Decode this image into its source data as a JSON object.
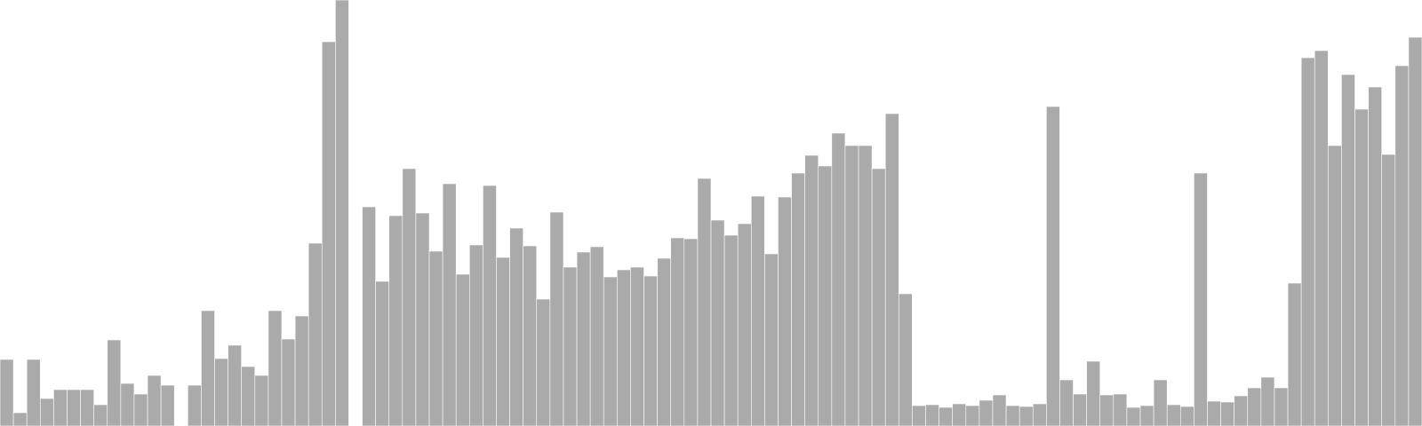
{
  "chart_data": {
    "type": "bar",
    "title": "",
    "xlabel": "",
    "ylabel": "",
    "ylim": [
      0,
      480
    ],
    "grid": false,
    "legend": "none",
    "bar_color": "#aaaaaa",
    "series": [
      {
        "values": [
          75,
          15,
          75,
          31,
          41,
          41,
          41,
          24,
          97,
          48,
          36,
          57,
          46,
          0,
          46,
          130,
          76,
          91,
          67,
          57,
          130,
          98,
          124,
          206,
          433,
          480,
          0,
          247,
          163,
          237,
          290,
          240,
          197,
          273,
          171,
          204,
          271,
          190,
          223,
          203,
          143,
          241,
          179,
          196,
          202,
          168,
          176,
          179,
          169,
          189,
          212,
          211,
          279,
          232,
          215,
          228,
          259,
          194,
          258,
          285,
          305,
          293,
          330,
          316,
          316,
          290,
          352,
          149,
          23,
          24,
          21,
          25,
          23,
          29,
          35,
          23,
          22,
          25,
          360,
          52,
          36,
          73,
          35,
          36,
          21,
          23,
          52,
          24,
          22,
          285,
          28,
          27,
          34,
          43,
          55,
          43,
          161,
          415,
          423,
          316,
          396,
          357,
          382,
          306,
          406,
          438
        ]
      }
    ]
  }
}
